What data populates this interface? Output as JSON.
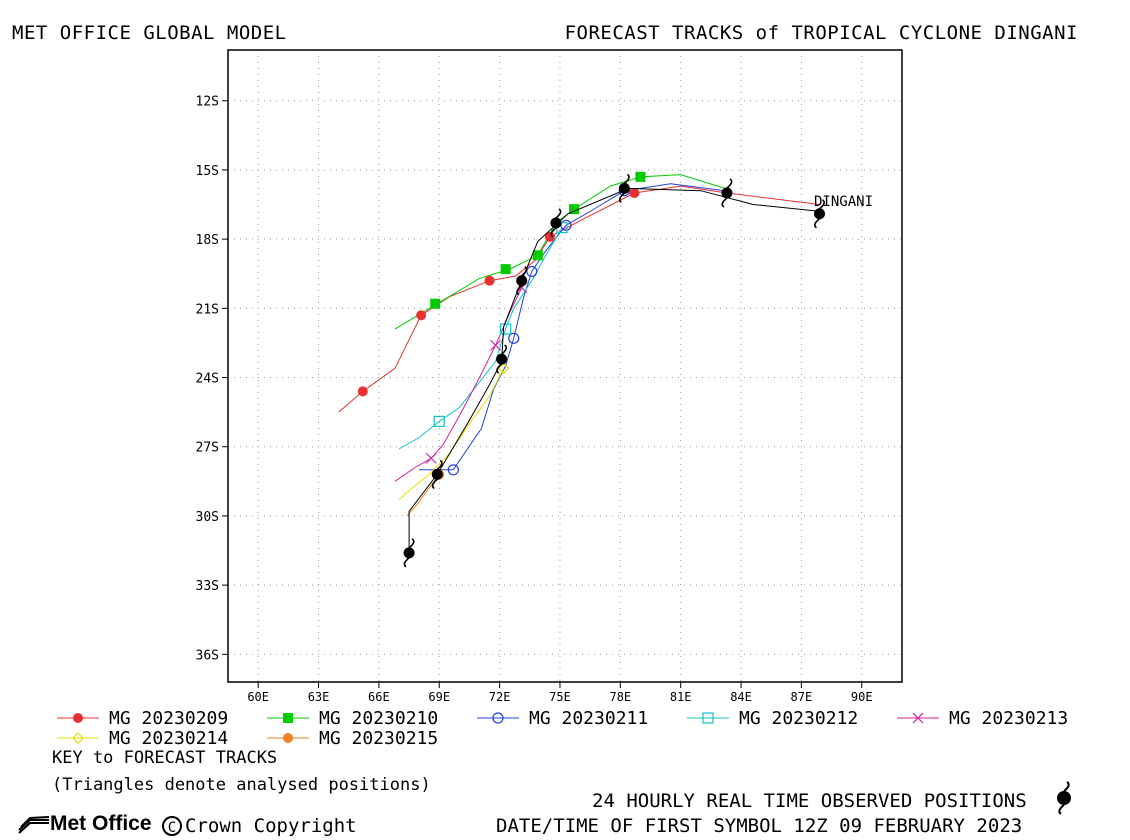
{
  "header": {
    "left_title": "MET OFFICE GLOBAL MODEL",
    "right_title": "FORECAST TRACKS of TROPICAL CYCLONE DINGANI"
  },
  "chart_data": {
    "type": "line",
    "xlabel": "",
    "ylabel": "",
    "xlim": [
      58.5,
      92
    ],
    "ylim": [
      -37.2,
      -9.8
    ],
    "x_ticks": [
      60,
      63,
      66,
      69,
      72,
      75,
      78,
      81,
      84,
      87,
      90
    ],
    "x_tick_labels": [
      "60E",
      "63E",
      "66E",
      "69E",
      "72E",
      "75E",
      "78E",
      "81E",
      "84E",
      "87E",
      "90E"
    ],
    "y_ticks": [
      -12,
      -15,
      -18,
      -21,
      -24,
      -27,
      -30,
      -33,
      -36
    ],
    "y_tick_labels": [
      "12S",
      "15S",
      "18S",
      "21S",
      "24S",
      "27S",
      "30S",
      "33S",
      "36S"
    ],
    "grid": true,
    "storm_label": "DINGANI",
    "observed": {
      "name": "24 HOURLY REAL TIME OBSERVED POSITIONS",
      "track": [
        [
          88.0,
          -16.8
        ],
        [
          84.6,
          -16.5
        ],
        [
          82.0,
          -15.9
        ],
        [
          78.4,
          -15.8
        ],
        [
          75.4,
          -16.9
        ],
        [
          73.9,
          -18.1
        ],
        [
          73.0,
          -20.0
        ],
        [
          72.2,
          -21.8
        ],
        [
          72.1,
          -23.3
        ],
        [
          71.5,
          -24.3
        ],
        [
          70.4,
          -26.0
        ],
        [
          68.9,
          -28.2
        ],
        [
          67.5,
          -29.8
        ],
        [
          67.5,
          -31.7
        ]
      ],
      "symbols": [
        [
          87.9,
          -16.9
        ],
        [
          83.3,
          -16.0
        ],
        [
          78.2,
          -15.8
        ],
        [
          74.8,
          -17.3
        ],
        [
          73.1,
          -19.8
        ],
        [
          72.1,
          -23.2
        ],
        [
          68.9,
          -28.2
        ],
        [
          67.5,
          -31.6
        ]
      ]
    },
    "series": [
      {
        "name": "MG 20230209",
        "color": "#e83030",
        "marker": "filled-circle",
        "line": [
          [
            87.9,
            -16.5
          ],
          [
            83.3,
            -16.0
          ],
          [
            81.0,
            -15.7
          ],
          [
            78.7,
            -16.0
          ],
          [
            76.0,
            -17.2
          ],
          [
            74.5,
            -17.9
          ],
          [
            73.8,
            -18.9
          ],
          [
            72.8,
            -19.6
          ],
          [
            71.5,
            -19.8
          ],
          [
            69.5,
            -20.5
          ],
          [
            68.1,
            -21.3
          ],
          [
            66.8,
            -23.6
          ],
          [
            65.2,
            -24.6
          ],
          [
            64.0,
            -25.5
          ]
        ],
        "markers": [
          [
            83.3,
            -16.0
          ],
          [
            78.7,
            -16.0
          ],
          [
            74.5,
            -17.9
          ],
          [
            71.5,
            -19.8
          ],
          [
            68.1,
            -21.3
          ],
          [
            65.2,
            -24.6
          ]
        ]
      },
      {
        "name": "MG 20230210",
        "color": "#00cc00",
        "marker": "filled-square",
        "line": [
          [
            83.2,
            -15.8
          ],
          [
            81.0,
            -15.2
          ],
          [
            79.0,
            -15.3
          ],
          [
            77.5,
            -15.7
          ],
          [
            75.7,
            -16.7
          ],
          [
            74.8,
            -17.3
          ],
          [
            73.9,
            -18.7
          ],
          [
            72.5,
            -19.3
          ],
          [
            71.0,
            -19.7
          ],
          [
            68.9,
            -20.8
          ],
          [
            66.8,
            -21.9
          ]
        ],
        "markers": [
          [
            79.0,
            -15.3
          ],
          [
            75.7,
            -16.7
          ],
          [
            73.9,
            -18.7
          ],
          [
            72.3,
            -19.3
          ],
          [
            68.8,
            -20.8
          ]
        ]
      },
      {
        "name": "MG 20230211",
        "color": "#2040e0",
        "marker": "open-circle",
        "line": [
          [
            83.2,
            -15.9
          ],
          [
            80.5,
            -15.6
          ],
          [
            78.2,
            -15.9
          ],
          [
            76.5,
            -16.8
          ],
          [
            75.3,
            -17.4
          ],
          [
            74.3,
            -18.5
          ],
          [
            73.6,
            -19.4
          ],
          [
            73.2,
            -20.5
          ],
          [
            72.7,
            -22.3
          ],
          [
            72.3,
            -23.5
          ],
          [
            71.7,
            -24.5
          ],
          [
            71.1,
            -26.2
          ],
          [
            69.7,
            -28.0
          ],
          [
            68.0,
            -28.0
          ]
        ],
        "markers": [
          [
            78.2,
            -15.9
          ],
          [
            75.3,
            -17.4
          ],
          [
            73.6,
            -19.4
          ],
          [
            72.7,
            -22.3
          ],
          [
            69.7,
            -28.0
          ]
        ]
      },
      {
        "name": "MG 20230212",
        "color": "#10c0c8",
        "marker": "open-square",
        "line": [
          [
            75.1,
            -17.5
          ],
          [
            74.3,
            -18.7
          ],
          [
            73.6,
            -19.8
          ],
          [
            72.7,
            -21.0
          ],
          [
            72.3,
            -21.9
          ],
          [
            71.8,
            -23.3
          ],
          [
            71.0,
            -24.2
          ],
          [
            70.0,
            -25.3
          ],
          [
            69.0,
            -25.9
          ],
          [
            68.0,
            -26.6
          ],
          [
            67.0,
            -27.1
          ]
        ],
        "markers": [
          [
            75.1,
            -17.5
          ],
          [
            72.3,
            -21.9
          ],
          [
            69.0,
            -25.9
          ]
        ]
      },
      {
        "name": "MG 20230213",
        "color": "#d020a0",
        "marker": "cross",
        "line": [
          [
            73.1,
            -20.1
          ],
          [
            72.6,
            -21.0
          ],
          [
            71.8,
            -22.6
          ],
          [
            71.0,
            -24.0
          ],
          [
            70.1,
            -25.5
          ],
          [
            69.2,
            -26.9
          ],
          [
            68.6,
            -27.5
          ],
          [
            67.8,
            -27.9
          ],
          [
            66.8,
            -28.5
          ]
        ],
        "markers": [
          [
            73.1,
            -20.1
          ],
          [
            71.8,
            -22.6
          ],
          [
            68.6,
            -27.5
          ]
        ]
      },
      {
        "name": "MG 20230214",
        "color": "#e8e000",
        "marker": "open-diamond",
        "line": [
          [
            72.2,
            -23.6
          ],
          [
            71.5,
            -24.8
          ],
          [
            70.5,
            -26.0
          ],
          [
            69.5,
            -27.3
          ],
          [
            68.5,
            -28.2
          ],
          [
            67.5,
            -28.9
          ],
          [
            67.0,
            -29.3
          ]
        ],
        "markers": [
          [
            72.2,
            -23.6
          ]
        ]
      },
      {
        "name": "MG 20230215",
        "color": "#f08020",
        "marker": "filled-circle",
        "line": [
          [
            69.0,
            -28.2
          ],
          [
            68.4,
            -28.9
          ],
          [
            67.9,
            -29.5
          ],
          [
            67.4,
            -30.0
          ]
        ],
        "markers": [
          [
            69.0,
            -28.2
          ]
        ]
      }
    ]
  },
  "legend_note": {
    "key": "KEY to FORECAST TRACKS",
    "triangles": "(Triangles denote analysed positions)"
  },
  "footer": {
    "observed_label": "24 HOURLY REAL TIME OBSERVED POSITIONS",
    "datetime": "DATE/TIME OF FIRST SYMBOL 12Z 09 FEBRUARY 2023",
    "logo": "Met Office",
    "copyright": "Crown Copyright"
  }
}
